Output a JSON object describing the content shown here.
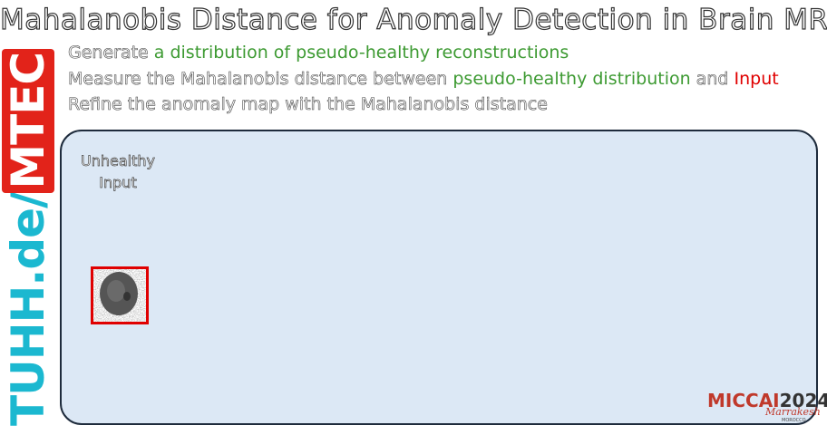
{
  "header": {
    "title": "Mahalanobis Distance for Anomaly Detection in Brain MRI"
  },
  "bullets": [
    [
      {
        "text": "Generate "
      },
      {
        "text": "a distribution of pseudo-healthy reconstructions",
        "style": "green"
      }
    ],
    [
      {
        "text": "Measure the Mahalanobis distance between "
      },
      {
        "text": "pseudo-healthy distribution",
        "style": "green"
      },
      {
        "text": " and "
      },
      {
        "text": "Input",
        "style": "red"
      }
    ],
    [
      {
        "text": "Refine the anomaly map with the Mahalanobis distance"
      }
    ]
  ],
  "panel": {
    "input_label": "Unhealthy Input"
  },
  "logo": {
    "prefix": "TUHH.de/",
    "suffix": "MTEC"
  },
  "conference": {
    "name": "MICCAI",
    "year": "2024",
    "city": "Marrakesh",
    "country": "MOROCCO"
  }
}
